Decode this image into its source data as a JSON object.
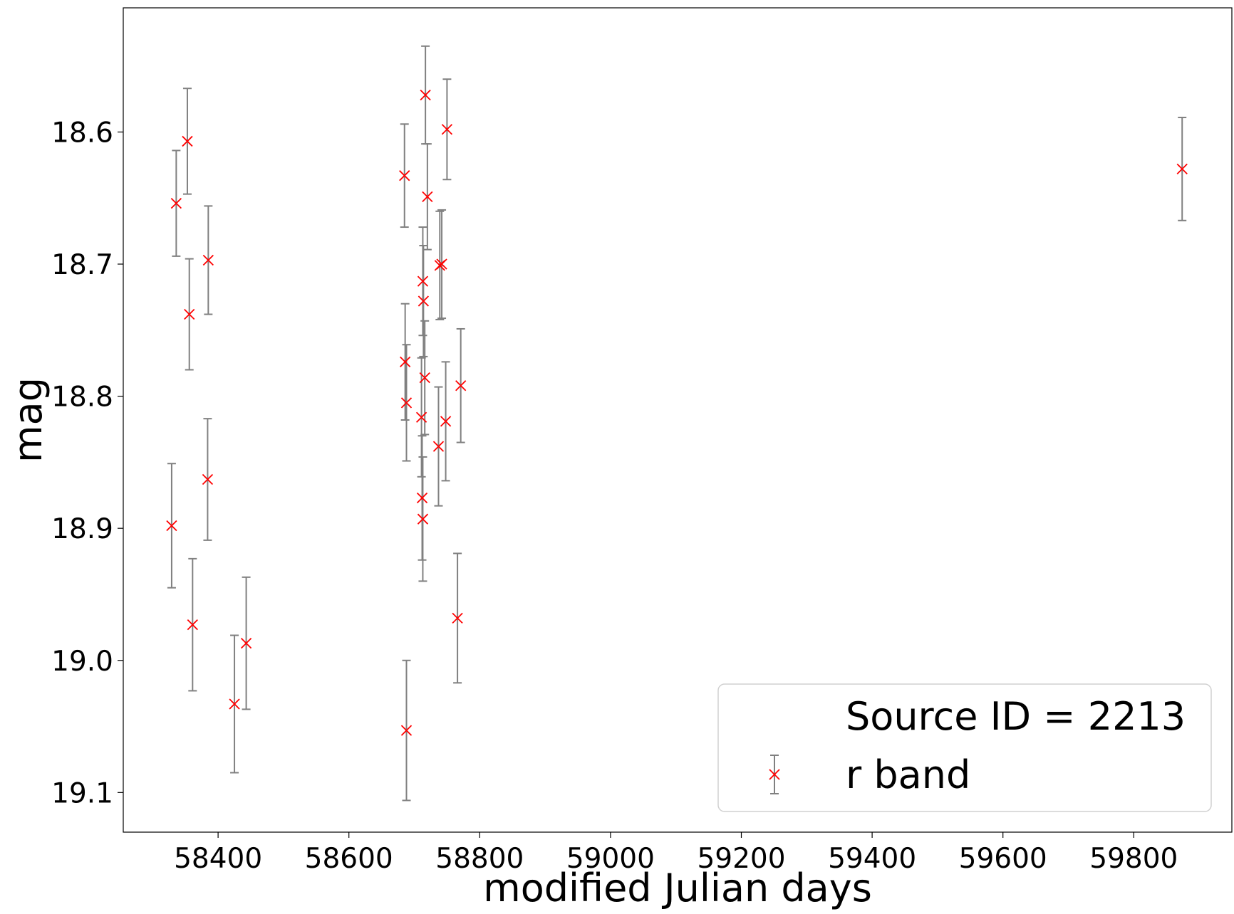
{
  "chart_data": {
    "type": "scatter",
    "xlabel": "modified Julian days",
    "ylabel": "mag",
    "xlim": [
      58255,
      59950
    ],
    "ylim": [
      19.13,
      18.506
    ],
    "y_inverted": true,
    "x_ticks": [
      58400,
      58600,
      58800,
      59000,
      59200,
      59400,
      59600,
      59800
    ],
    "y_ticks": [
      18.6,
      18.7,
      18.8,
      18.9,
      19.0,
      19.1
    ],
    "y_tick_labels": [
      "18.6",
      "18.7",
      "18.8",
      "18.9",
      "19.0",
      "19.1"
    ],
    "grid": false,
    "legend": {
      "placement": "lower-right",
      "entries": [
        "Source ID = 2213",
        "r band"
      ]
    },
    "colors": {
      "marker": "#ff0000",
      "errorbar": "#808080"
    },
    "series": [
      {
        "name": "r band",
        "marker": "x",
        "points": [
          {
            "x": 58329,
            "y": 18.898,
            "err": 0.047
          },
          {
            "x": 58336,
            "y": 18.654,
            "err": 0.04
          },
          {
            "x": 58353,
            "y": 18.607,
            "err": 0.04
          },
          {
            "x": 58356,
            "y": 18.738,
            "err": 0.042
          },
          {
            "x": 58361,
            "y": 18.973,
            "err": 0.05
          },
          {
            "x": 58384,
            "y": 18.863,
            "err": 0.046
          },
          {
            "x": 58385,
            "y": 18.697,
            "err": 0.041
          },
          {
            "x": 58425,
            "y": 19.033,
            "err": 0.052
          },
          {
            "x": 58443,
            "y": 18.987,
            "err": 0.05
          },
          {
            "x": 58685,
            "y": 18.633,
            "err": 0.039
          },
          {
            "x": 58686,
            "y": 18.774,
            "err": 0.044
          },
          {
            "x": 58688,
            "y": 18.805,
            "err": 0.044
          },
          {
            "x": 58688,
            "y": 19.053,
            "err": 0.053
          },
          {
            "x": 58711,
            "y": 18.816,
            "err": 0.045
          },
          {
            "x": 58712,
            "y": 18.877,
            "err": 0.047
          },
          {
            "x": 58713,
            "y": 18.893,
            "err": 0.047
          },
          {
            "x": 58713,
            "y": 18.713,
            "err": 0.041
          },
          {
            "x": 58714,
            "y": 18.728,
            "err": 0.042
          },
          {
            "x": 58716,
            "y": 18.786,
            "err": 0.043
          },
          {
            "x": 58717,
            "y": 18.572,
            "err": 0.037
          },
          {
            "x": 58720,
            "y": 18.649,
            "err": 0.04
          },
          {
            "x": 58737,
            "y": 18.838,
            "err": 0.045
          },
          {
            "x": 58739,
            "y": 18.701,
            "err": 0.041
          },
          {
            "x": 58742,
            "y": 18.7,
            "err": 0.041
          },
          {
            "x": 58748,
            "y": 18.819,
            "err": 0.045
          },
          {
            "x": 58750,
            "y": 18.598,
            "err": 0.038
          },
          {
            "x": 58766,
            "y": 18.968,
            "err": 0.049
          },
          {
            "x": 58771,
            "y": 18.792,
            "err": 0.043
          },
          {
            "x": 59874,
            "y": 18.628,
            "err": 0.039
          }
        ]
      }
    ]
  }
}
